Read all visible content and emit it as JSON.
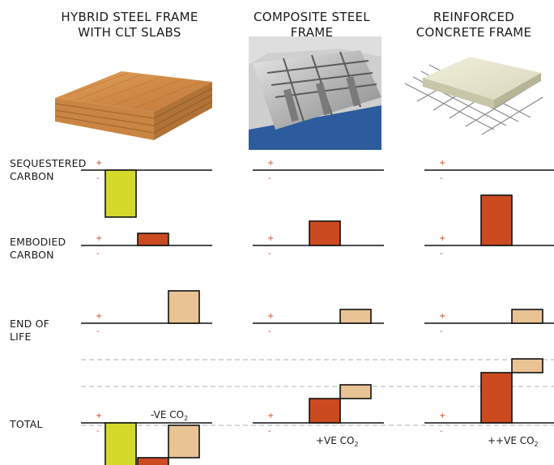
{
  "columns": [
    {
      "title": "HYBRID STEEL FRAME\nWITH CLT SLABS",
      "image": "clt-panel-illustration"
    },
    {
      "title": "COMPOSITE STEEL\nFRAME",
      "image": "steel-decking-photo"
    },
    {
      "title": "REINFORCED\nCONCRETE FRAME",
      "image": "rebar-concrete-slab-illustration"
    }
  ],
  "rows": [
    {
      "label": "SEQUESTERED\nCARBON"
    },
    {
      "label": "EMBODIED\nCARBON"
    },
    {
      "label": "END OF\nLIFE"
    },
    {
      "label": "TOTAL"
    }
  ],
  "signs": {
    "plus": "+",
    "minus": "-"
  },
  "totals_labels": [
    {
      "text": "-VE CO",
      "sub": "2"
    },
    {
      "text": "+VE CO",
      "sub": "2"
    },
    {
      "text": "++VE CO",
      "sub": "2"
    }
  ],
  "colors": {
    "sequestered": "#d4d92a",
    "embodied": "#cc4a20",
    "end_of_life": "#e9c394",
    "sign": "#cc4a20",
    "dashed": "#b0b0b0"
  },
  "chart_data": {
    "type": "bar",
    "categories": [
      "HYBRID STEEL FRAME WITH CLT SLABS",
      "COMPOSITE STEEL FRAME",
      "REINFORCED CONCRETE FRAME"
    ],
    "series": [
      {
        "name": "SEQUESTERED CARBON",
        "values": [
          -58,
          0,
          0
        ]
      },
      {
        "name": "EMBODIED CARBON",
        "values": [
          15,
          30,
          62
        ]
      },
      {
        "name": "END OF LIFE",
        "values": [
          40,
          17,
          17
        ]
      }
    ],
    "totals": [
      -3,
      47,
      79
    ],
    "ylim": [
      -60,
      80
    ]
  }
}
